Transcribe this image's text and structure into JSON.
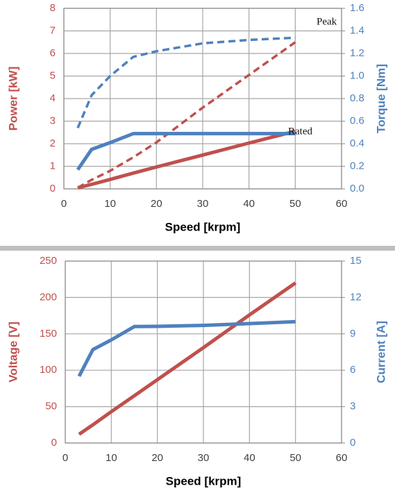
{
  "chart_data": [
    {
      "type": "line",
      "xlabel": "Speed [krpm]",
      "ylabel": "Power [kW]",
      "y2label": "Torque [Nm]",
      "xlim": [
        0,
        60
      ],
      "xticks": [
        0,
        10,
        20,
        30,
        40,
        50,
        60
      ],
      "ylim": [
        0,
        8
      ],
      "yticks": [
        0,
        1,
        2,
        3,
        4,
        5,
        6,
        7,
        8
      ],
      "y2lim": [
        0,
        1.6
      ],
      "y2ticks": [
        {
          "value": 0,
          "label": "0.0"
        },
        0.2,
        0.4,
        0.6,
        0.8,
        {
          "value": 1,
          "label": "1.0"
        },
        1.2,
        1.4,
        1.6
      ],
      "ycolor": "#c0504d",
      "y2color": "#4f81bd",
      "grid": true,
      "x": [
        3,
        6,
        10,
        15,
        20,
        30,
        40,
        50
      ],
      "series": [
        {
          "color": "#c0504d",
          "style": "dashed",
          "values": [
            0.05,
            0.4,
            0.8,
            1.4,
            2.06,
            3.6,
            5.05,
            6.5
          ]
        },
        {
          "color": "#c0504d",
          "style": "solid",
          "values": [
            0.05,
            0.2,
            0.42,
            0.7,
            0.97,
            1.5,
            2.03,
            2.55
          ]
        },
        {
          "color": "#4f81bd",
          "style": "dashed",
          "axis": "y2",
          "values": [
            0.54,
            0.83,
            1.0,
            1.17,
            1.22,
            1.29,
            1.32,
            1.34
          ]
        },
        {
          "color": "#4f81bd",
          "style": "solid",
          "axis": "y2",
          "values": [
            0.17,
            0.35,
            0.41,
            0.49,
            0.49,
            0.49,
            0.49,
            0.49
          ]
        }
      ],
      "annotations": [
        "Peak",
        "Rated"
      ]
    },
    {
      "type": "line",
      "xlabel": "Speed [krpm]",
      "ylabel": "Voltage [V]",
      "y2label": "Current [A]",
      "xlim": [
        0,
        60
      ],
      "xticks": [
        0,
        10,
        20,
        30,
        40,
        50,
        60
      ],
      "ylim": [
        0,
        250
      ],
      "yticks": [
        0,
        50,
        100,
        150,
        200,
        250
      ],
      "y2lim": [
        0,
        15
      ],
      "y2ticks": [
        0,
        3,
        6,
        9,
        12,
        15
      ],
      "ycolor": "#c0504d",
      "y2color": "#4f81bd",
      "grid": true,
      "x": [
        3,
        6,
        10,
        15,
        20,
        30,
        40,
        50
      ],
      "series": [
        {
          "color": "#c0504d",
          "style": "solid",
          "values": [
            12,
            25,
            43,
            65,
            87,
            131,
            176,
            220
          ]
        },
        {
          "color": "#4f81bd",
          "style": "solid",
          "axis": "y2",
          "values": [
            5.5,
            7.7,
            8.5,
            9.6,
            9.62,
            9.7,
            9.85,
            10.0
          ]
        }
      ]
    }
  ]
}
